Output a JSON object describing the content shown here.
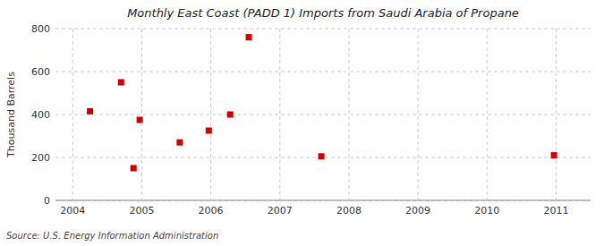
{
  "chart_data": {
    "type": "scatter",
    "title": "Monthly East Coast (PADD 1) Imports from Saudi Arabia of Propane",
    "y_label": "Thousand Barrels",
    "annotation": "Source: U.S. Energy Information Administration",
    "x": [
      2004.25,
      2004.7,
      2004.88,
      2004.97,
      2005.55,
      2005.97,
      2006.28,
      2006.55,
      2007.6,
      2010.97
    ],
    "values": [
      415,
      550,
      150,
      375,
      270,
      325,
      400,
      760,
      205,
      210
    ],
    "color": "#cc0000",
    "marker": "square",
    "xlim": [
      2003.75,
      2011.5
    ],
    "ylim": [
      0,
      800
    ],
    "xticks": [
      2004,
      2005,
      2006,
      2007,
      2008,
      2009,
      2010,
      2011
    ],
    "yticks": [
      0,
      200,
      400,
      600,
      800
    ],
    "grid": true
  }
}
